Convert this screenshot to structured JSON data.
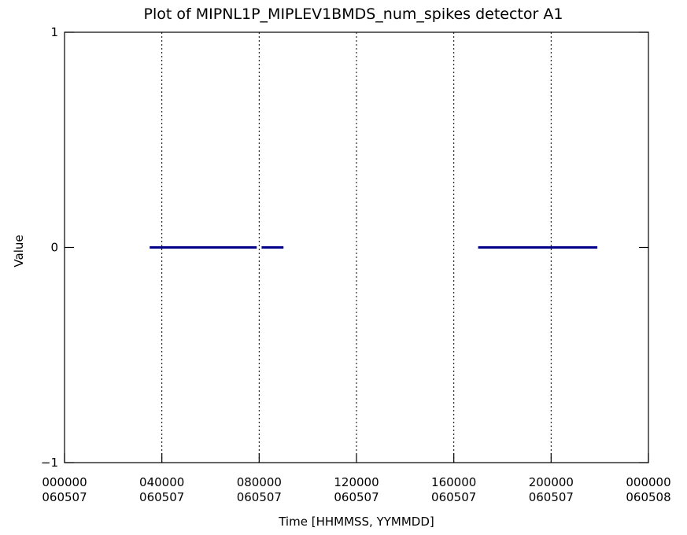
{
  "chart_data": {
    "type": "line",
    "title": "Plot of MIPNL1P_MIPLEV1BMDS_num_spikes detector A1",
    "xlabel": "Time [HHMMSS, YYMMDD]",
    "ylabel": "Value",
    "ylim": [
      -1,
      1
    ],
    "xlim_hours": [
      0,
      24
    ],
    "y_ticks": [
      {
        "value": 1,
        "label": "1"
      },
      {
        "value": 0,
        "label": "0"
      },
      {
        "value": -1,
        "label": "−1"
      }
    ],
    "x_ticks": [
      {
        "hour": 0,
        "time": "000000",
        "date": "060507"
      },
      {
        "hour": 4,
        "time": "040000",
        "date": "060507"
      },
      {
        "hour": 8,
        "time": "080000",
        "date": "060507"
      },
      {
        "hour": 12,
        "time": "120000",
        "date": "060507"
      },
      {
        "hour": 16,
        "time": "160000",
        "date": "060507"
      },
      {
        "hour": 20,
        "time": "200000",
        "date": "060507"
      },
      {
        "hour": 24,
        "time": "000000",
        "date": "060508"
      }
    ],
    "vertical_grid_hours": [
      4,
      8,
      12,
      16,
      20
    ],
    "grid_style": "dotted",
    "series": [
      {
        "color": "#00008b",
        "segments": [
          {
            "x": [
              3.5,
              7.9
            ],
            "y": [
              0,
              0
            ]
          },
          {
            "x": [
              8.1,
              9.0
            ],
            "y": [
              0,
              0
            ]
          },
          {
            "x": [
              17.0,
              21.9
            ],
            "y": [
              0,
              0
            ]
          }
        ]
      }
    ]
  }
}
